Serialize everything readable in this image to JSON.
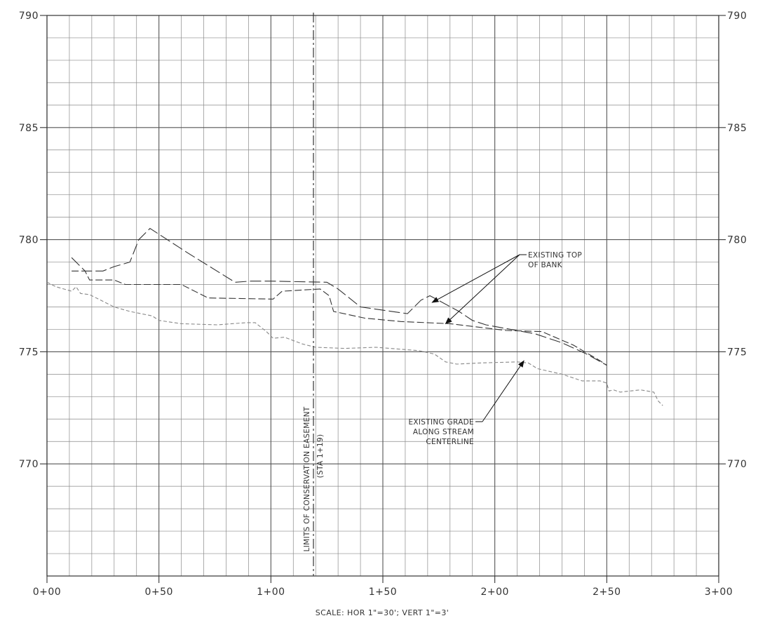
{
  "chart_data": {
    "type": "line",
    "title": "",
    "xlabel": "",
    "ylabel": "",
    "xlim": [
      0,
      300
    ],
    "ylim": [
      765,
      790
    ],
    "x_ticks": [
      0,
      50,
      100,
      150,
      200,
      250,
      300
    ],
    "x_tick_labels": [
      "0+00",
      "0+50",
      "1+00",
      "1+50",
      "2+00",
      "2+50",
      "3+00"
    ],
    "y_ticks": [
      770,
      775,
      780,
      785,
      790
    ],
    "y_tick_labels": [
      "770",
      "775",
      "780",
      "785",
      "790"
    ],
    "grid": true,
    "series": [
      {
        "name": "",
        "style": "long-dash",
        "color": "#333333",
        "points": [
          [
            11,
            779.2
          ],
          [
            17,
            778.6
          ],
          [
            25,
            778.6
          ],
          [
            30,
            778.8
          ],
          [
            37,
            779.0
          ],
          [
            41,
            780.0
          ],
          [
            46,
            780.5
          ],
          [
            63,
            779.4
          ],
          [
            84,
            778.1
          ],
          [
            91,
            778.15
          ],
          [
            100,
            778.15
          ],
          [
            125,
            778.1
          ],
          [
            130,
            777.8
          ],
          [
            140,
            777.0
          ],
          [
            161,
            776.7
          ],
          [
            167,
            777.3
          ],
          [
            171,
            777.5
          ],
          [
            184,
            776.8
          ],
          [
            190,
            776.4
          ],
          [
            196,
            776.2
          ],
          [
            207,
            776.0
          ],
          [
            218,
            775.8
          ],
          [
            230,
            775.4
          ],
          [
            241,
            774.9
          ],
          [
            250,
            774.4
          ]
        ]
      },
      {
        "name": "",
        "style": "medium-dash",
        "color": "#333333",
        "points": [
          [
            11,
            778.6
          ],
          [
            17,
            778.6
          ],
          [
            19,
            778.2
          ],
          [
            30,
            778.2
          ],
          [
            35,
            778.0
          ],
          [
            60,
            778.0
          ],
          [
            72,
            777.4
          ],
          [
            101,
            777.35
          ],
          [
            105,
            777.7
          ],
          [
            122,
            777.8
          ],
          [
            126,
            777.5
          ],
          [
            128,
            776.8
          ],
          [
            142,
            776.5
          ],
          [
            158,
            776.35
          ],
          [
            180,
            776.25
          ],
          [
            205,
            775.95
          ],
          [
            221,
            775.9
          ],
          [
            235,
            775.3
          ],
          [
            247,
            774.6
          ],
          [
            250,
            774.4
          ]
        ]
      },
      {
        "name": "",
        "style": "short-dash",
        "color": "#888888",
        "points": [
          [
            0,
            778.1
          ],
          [
            4,
            777.9
          ],
          [
            11,
            777.7
          ],
          [
            13,
            777.9
          ],
          [
            15,
            777.6
          ],
          [
            19,
            777.55
          ],
          [
            30,
            777.0
          ],
          [
            37,
            776.8
          ],
          [
            47,
            776.6
          ],
          [
            50,
            776.4
          ],
          [
            60,
            776.25
          ],
          [
            76,
            776.2
          ],
          [
            89,
            776.3
          ],
          [
            93,
            776.3
          ],
          [
            98,
            775.9
          ],
          [
            101,
            775.6
          ],
          [
            106,
            775.65
          ],
          [
            114,
            775.35
          ],
          [
            120,
            775.2
          ],
          [
            133,
            775.15
          ],
          [
            147,
            775.2
          ],
          [
            166,
            775.05
          ],
          [
            173,
            774.9
          ],
          [
            178,
            774.55
          ],
          [
            183,
            774.45
          ],
          [
            193,
            774.5
          ],
          [
            210,
            774.55
          ],
          [
            215,
            774.5
          ],
          [
            219,
            774.25
          ],
          [
            230,
            774.0
          ],
          [
            239,
            773.7
          ],
          [
            247,
            773.7
          ],
          [
            250,
            773.6
          ],
          [
            251,
            773.25
          ],
          [
            253,
            773.3
          ],
          [
            256,
            773.2
          ],
          [
            265,
            773.3
          ],
          [
            271,
            773.2
          ],
          [
            273,
            772.8
          ],
          [
            275,
            772.6
          ]
        ]
      }
    ],
    "reference_line": {
      "x": 119,
      "label_lines": [
        "LIMITS OF CONSERVATION EASEMENT",
        "(STA 1+19)"
      ]
    },
    "annotations": [
      {
        "lines": [
          "EXISTING TOP",
          "OF BANK"
        ],
        "targets": [
          [
            172,
            777.2
          ],
          [
            178,
            776.25
          ]
        ]
      },
      {
        "lines": [
          "EXISTING GRADE",
          "ALONG STREAM",
          "CENTERLINE"
        ],
        "targets": [
          [
            213,
            774.6
          ]
        ]
      }
    ],
    "scale_note": "SCALE: HOR 1\"=30'; VERT 1\"=3'"
  }
}
